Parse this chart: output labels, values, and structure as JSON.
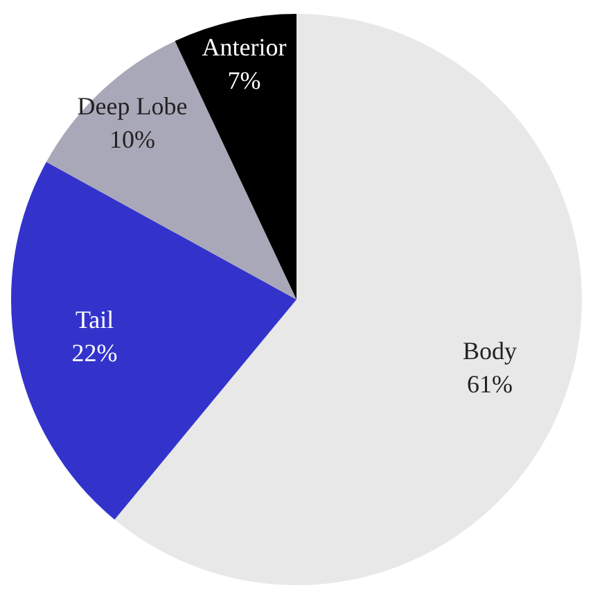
{
  "chart_data": {
    "type": "pie",
    "categories": [
      "Body",
      "Tail",
      "Deep Lobe",
      "Anterior"
    ],
    "values": [
      61,
      22,
      10,
      7
    ],
    "value_labels": [
      "61%",
      "22%",
      "10%",
      "7%"
    ],
    "colors": [
      "#e8e8e8",
      "#3333cc",
      "#a9a8b8",
      "#000000"
    ],
    "legend": false
  }
}
